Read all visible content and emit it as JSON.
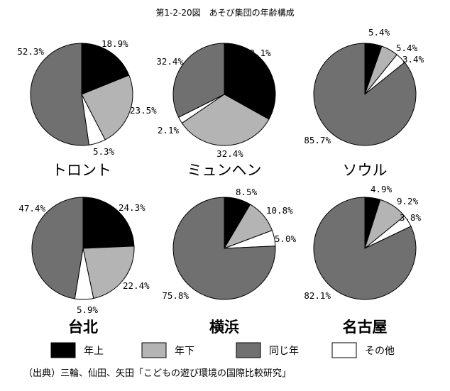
{
  "figure": {
    "title": "第1-2-20図　あそび集団の年齢構成",
    "source": "（出典）三輪、仙田、矢田「こどもの遊び環境の国際比較研究」"
  },
  "legend": {
    "items": [
      {
        "label": "年上",
        "color": "#000000"
      },
      {
        "label": "年下",
        "color": "#b4b4b4"
      },
      {
        "label": "同じ年",
        "color": "#707070"
      },
      {
        "label": "その他",
        "color": "#ffffff"
      }
    ]
  },
  "chart_data": [
    {
      "type": "pie",
      "title": "トロント",
      "slices": [
        {
          "category": "年上",
          "value": 18.9,
          "label": "18.9%"
        },
        {
          "category": "年下",
          "value": 23.5,
          "label": "23.5%"
        },
        {
          "category": "その他",
          "value": 5.3,
          "label": "5.3%"
        },
        {
          "category": "同じ年",
          "value": 52.3,
          "label": "52.3%"
        }
      ]
    },
    {
      "type": "pie",
      "title": "ミュンヘン",
      "slices": [
        {
          "category": "年上",
          "value": 33.1,
          "label": "33.1%"
        },
        {
          "category": "年下",
          "value": 32.4,
          "label": "32.4%"
        },
        {
          "category": "その他",
          "value": 2.1,
          "label": "2.1%"
        },
        {
          "category": "同じ年",
          "value": 32.4,
          "label": "32.4%"
        }
      ]
    },
    {
      "type": "pie",
      "title": "ソウル",
      "slices": [
        {
          "category": "年上",
          "value": 5.4,
          "label": "5.4%"
        },
        {
          "category": "年下",
          "value": 5.4,
          "label": "5.4%"
        },
        {
          "category": "その他",
          "value": 3.4,
          "label": "3.4%"
        },
        {
          "category": "同じ年",
          "value": 85.7,
          "label": "85.7%"
        }
      ]
    },
    {
      "type": "pie",
      "title": "台北",
      "title_bold": true,
      "slices": [
        {
          "category": "年上",
          "value": 24.3,
          "label": "24.3%"
        },
        {
          "category": "年下",
          "value": 22.4,
          "label": "22.4%"
        },
        {
          "category": "その他",
          "value": 5.9,
          "label": "5.9%"
        },
        {
          "category": "同じ年",
          "value": 47.4,
          "label": "47.4%"
        }
      ]
    },
    {
      "type": "pie",
      "title": "横浜",
      "title_bold": true,
      "slices": [
        {
          "category": "年上",
          "value": 8.5,
          "label": "8.5%"
        },
        {
          "category": "年下",
          "value": 10.8,
          "label": "10.8%"
        },
        {
          "category": "その他",
          "value": 5.0,
          "label": "5.0%"
        },
        {
          "category": "同じ年",
          "value": 75.8,
          "label": "75.8%"
        }
      ]
    },
    {
      "type": "pie",
      "title": "名古屋",
      "title_bold": true,
      "slices": [
        {
          "category": "年上",
          "value": 4.9,
          "label": "4.9%"
        },
        {
          "category": "年下",
          "value": 9.2,
          "label": "9.2%"
        },
        {
          "category": "その他",
          "value": 3.8,
          "label": "3.8%"
        },
        {
          "category": "同じ年",
          "value": 82.1,
          "label": "82.1%"
        }
      ]
    }
  ]
}
